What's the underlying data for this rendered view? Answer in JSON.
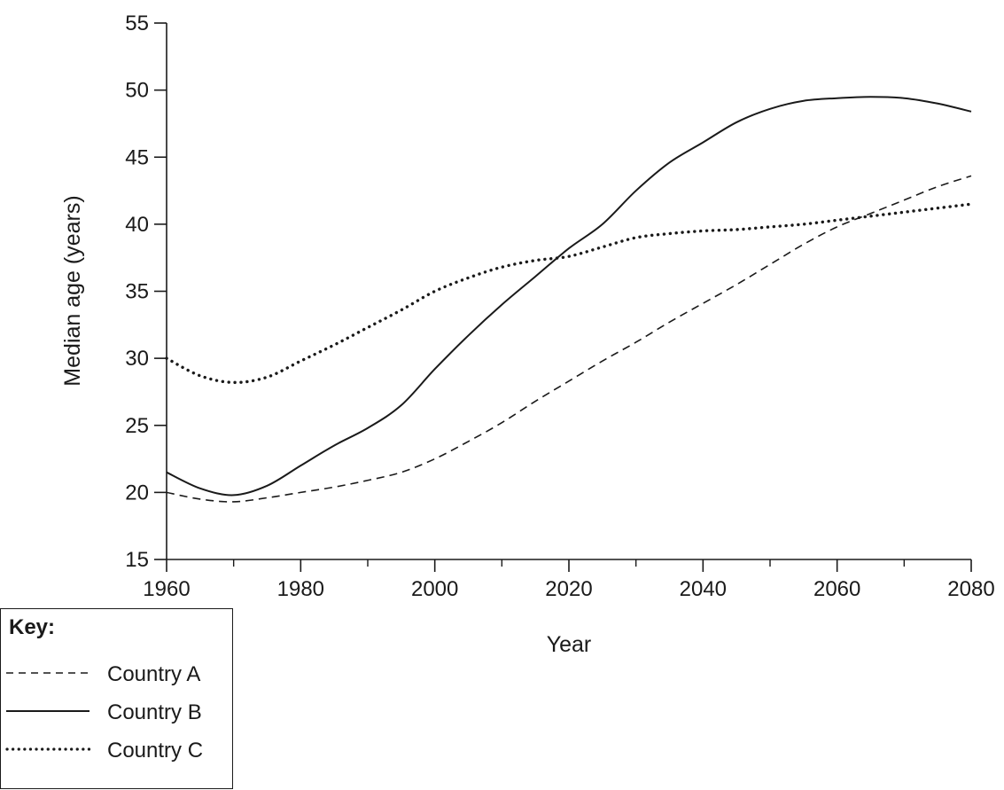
{
  "chart_data": {
    "type": "line",
    "xlabel": "Year",
    "ylabel": "Median age (years)",
    "xlim": [
      1960,
      2080
    ],
    "ylim": [
      15,
      55
    ],
    "x_ticks": [
      1960,
      1980,
      2000,
      2020,
      2040,
      2060,
      2080
    ],
    "x_minor_step": 10,
    "y_ticks": [
      15,
      20,
      25,
      30,
      35,
      40,
      45,
      50,
      55
    ],
    "legend_title": "Key:",
    "legend_position": "bottom-left",
    "grid": false,
    "series": [
      {
        "name": "Country A",
        "style": "dashed",
        "x": [
          1960,
          1965,
          1970,
          1975,
          1980,
          1985,
          1990,
          1995,
          2000,
          2005,
          2010,
          2015,
          2020,
          2025,
          2030,
          2035,
          2040,
          2045,
          2050,
          2055,
          2060,
          2065,
          2070,
          2075,
          2080
        ],
        "y": [
          20.0,
          19.5,
          19.3,
          19.6,
          20.0,
          20.4,
          20.9,
          21.5,
          22.5,
          23.8,
          25.2,
          26.8,
          28.3,
          29.8,
          31.2,
          32.7,
          34.1,
          35.5,
          37.0,
          38.5,
          39.8,
          40.8,
          41.8,
          42.8,
          43.6
        ]
      },
      {
        "name": "Country B",
        "style": "solid",
        "x": [
          1960,
          1965,
          1970,
          1975,
          1980,
          1985,
          1990,
          1995,
          2000,
          2005,
          2010,
          2015,
          2020,
          2025,
          2030,
          2035,
          2040,
          2045,
          2050,
          2055,
          2060,
          2065,
          2070,
          2075,
          2080
        ],
        "y": [
          21.5,
          20.3,
          19.8,
          20.5,
          22.0,
          23.5,
          24.8,
          26.5,
          29.2,
          31.7,
          34.0,
          36.1,
          38.2,
          40.0,
          42.5,
          44.6,
          46.1,
          47.6,
          48.6,
          49.2,
          49.4,
          49.5,
          49.4,
          49.0,
          48.4
        ]
      },
      {
        "name": "Country C",
        "style": "dotted",
        "x": [
          1960,
          1965,
          1970,
          1975,
          1980,
          1985,
          1990,
          1995,
          2000,
          2005,
          2010,
          2015,
          2020,
          2025,
          2030,
          2035,
          2040,
          2045,
          2050,
          2055,
          2060,
          2065,
          2070,
          2075,
          2080
        ],
        "y": [
          30.0,
          28.7,
          28.2,
          28.6,
          29.8,
          31.0,
          32.3,
          33.6,
          35.0,
          36.0,
          36.8,
          37.3,
          37.6,
          38.3,
          39.0,
          39.3,
          39.5,
          39.6,
          39.8,
          40.0,
          40.3,
          40.6,
          40.9,
          41.2,
          41.5
        ]
      }
    ]
  }
}
